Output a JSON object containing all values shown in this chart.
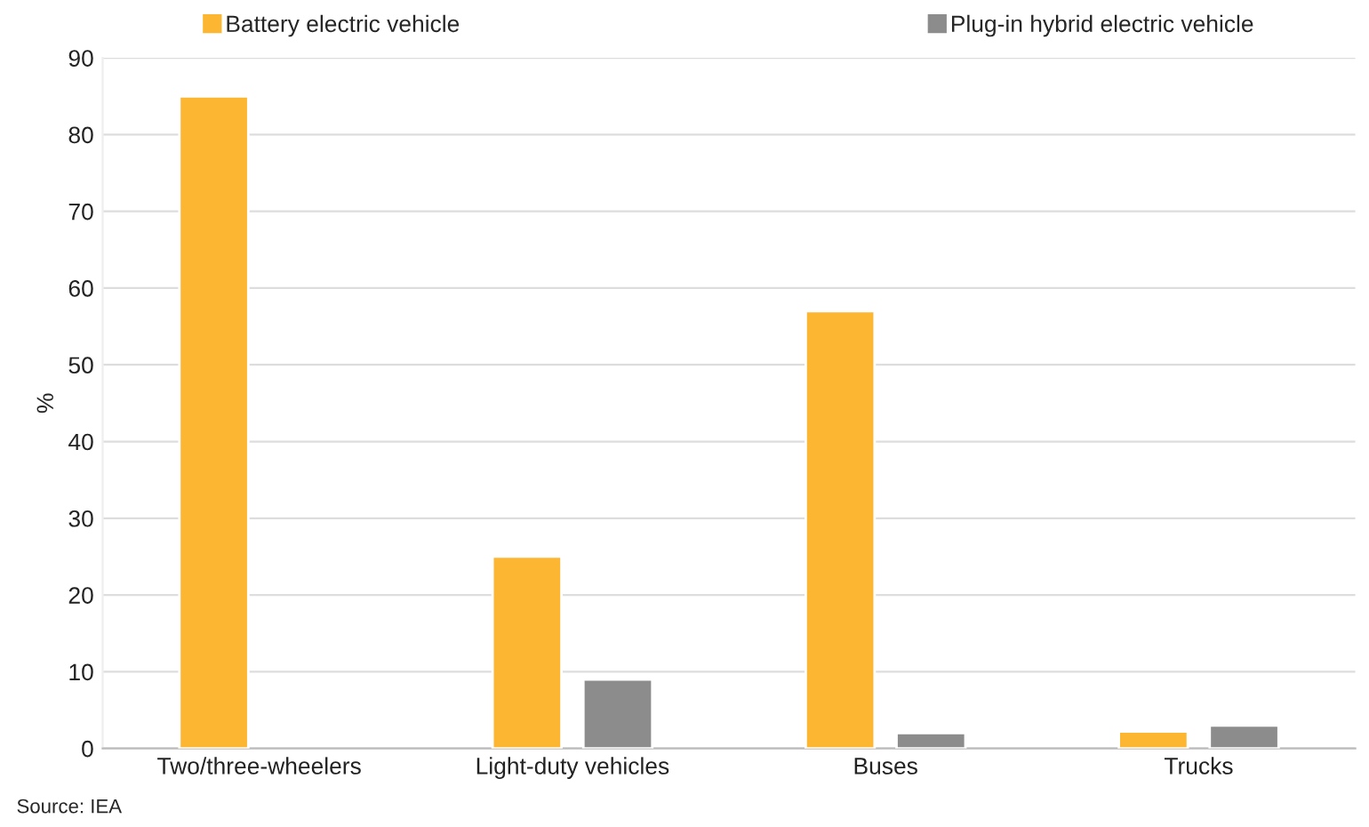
{
  "chart_data": {
    "type": "bar",
    "ylabel": "%",
    "categories": [
      "Two/three-wheelers",
      "Light-duty vehicles",
      "Buses",
      "Trucks"
    ],
    "series": [
      {
        "name": "Battery electric vehicle",
        "color": "#fdb632",
        "values": [
          85,
          25,
          57,
          2.2
        ]
      },
      {
        "name": "Plug-in hybrid electric vehicle",
        "color": "#8c8c8c",
        "values": [
          null,
          9,
          2,
          3
        ]
      }
    ],
    "ylim": [
      0,
      90
    ],
    "yticks": [
      0,
      10,
      20,
      30,
      40,
      50,
      60,
      70,
      80,
      90
    ],
    "grid": "y",
    "legend": "top",
    "annotations": [
      "Source: IEA"
    ]
  }
}
